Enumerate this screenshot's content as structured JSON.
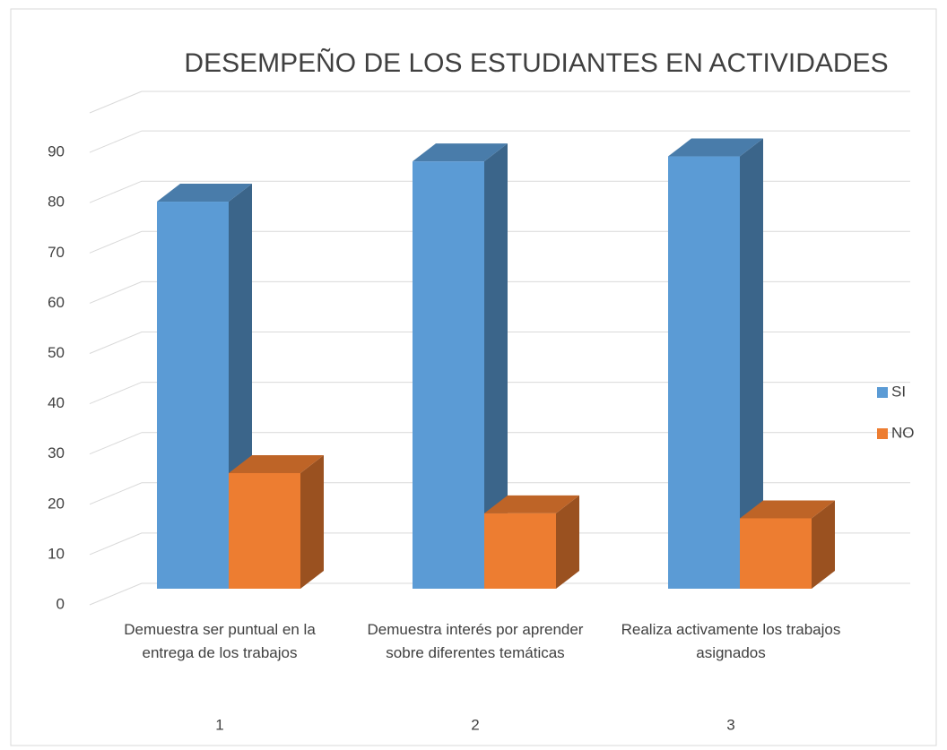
{
  "chart_data": {
    "type": "bar3d",
    "title": "DESEMPEÑO DE LOS ESTUDIANTES EN ACTIVIDADES",
    "categories": [
      "Demuestra ser puntual en la entrega de los trabajos",
      "Demuestra interés por aprender sobre diferentes temáticas",
      "Realiza activamente los trabajos asignados"
    ],
    "groups": [
      "1",
      "2",
      "3"
    ],
    "series": [
      {
        "name": "SI",
        "color": "#5b9bd5",
        "values": [
          77,
          85,
          86
        ]
      },
      {
        "name": "NO",
        "color": "#ed7d31",
        "values": [
          23,
          15,
          14
        ]
      }
    ],
    "ylim": [
      0,
      100
    ],
    "yticks": [
      0,
      10,
      20,
      30,
      40,
      50,
      60,
      70,
      80,
      90
    ],
    "grid": true,
    "legend": "right"
  }
}
